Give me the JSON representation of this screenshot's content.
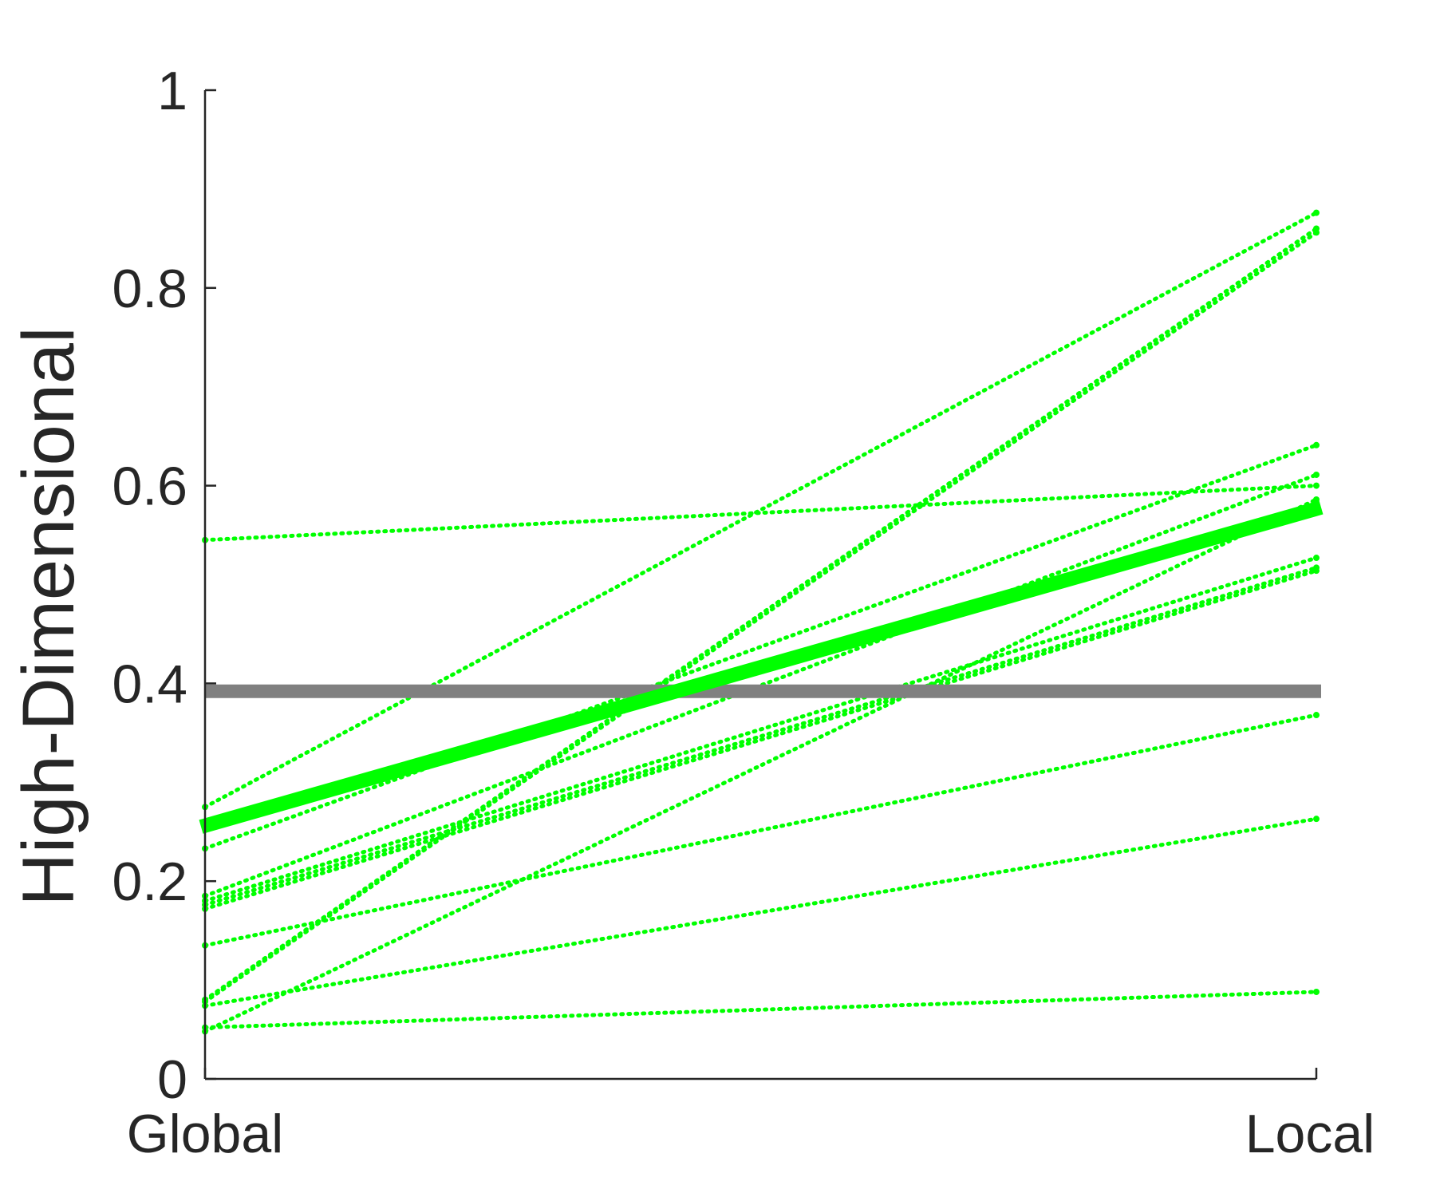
{
  "chart_data": {
    "type": "line",
    "title": "",
    "xlabel": "",
    "ylabel": "High-Dimensional",
    "categories": [
      "Global",
      "Local"
    ],
    "ylim": [
      0,
      1
    ],
    "yticks": [
      "0",
      "0.2",
      "0.4",
      "0.6",
      "0.8",
      "1"
    ],
    "ytick_values": [
      0,
      0.2,
      0.4,
      0.6,
      0.8,
      1
    ],
    "grid": false,
    "legend": "none",
    "colors": {
      "subjects": "#00ff00",
      "mean": "#00ff00",
      "reference": "#808080",
      "axis": "#262626"
    },
    "series": [
      {
        "values": [
          0.545,
          0.6
        ]
      },
      {
        "values": [
          0.275,
          0.876
        ]
      },
      {
        "values": [
          0.233,
          0.641
        ]
      },
      {
        "values": [
          0.185,
          0.611
        ]
      },
      {
        "values": [
          0.18,
          0.527
        ]
      },
      {
        "values": [
          0.176,
          0.517
        ]
      },
      {
        "values": [
          0.172,
          0.514
        ]
      },
      {
        "values": [
          0.135,
          0.368
        ]
      },
      {
        "values": [
          0.08,
          0.86
        ]
      },
      {
        "values": [
          0.078,
          0.856
        ]
      },
      {
        "values": [
          0.074,
          0.263
        ]
      },
      {
        "values": [
          0.052,
          0.088
        ]
      },
      {
        "values": [
          0.048,
          0.586
        ]
      }
    ],
    "mean": {
      "values": [
        0.255,
        0.578
      ]
    },
    "reference": {
      "value": 0.392
    }
  }
}
